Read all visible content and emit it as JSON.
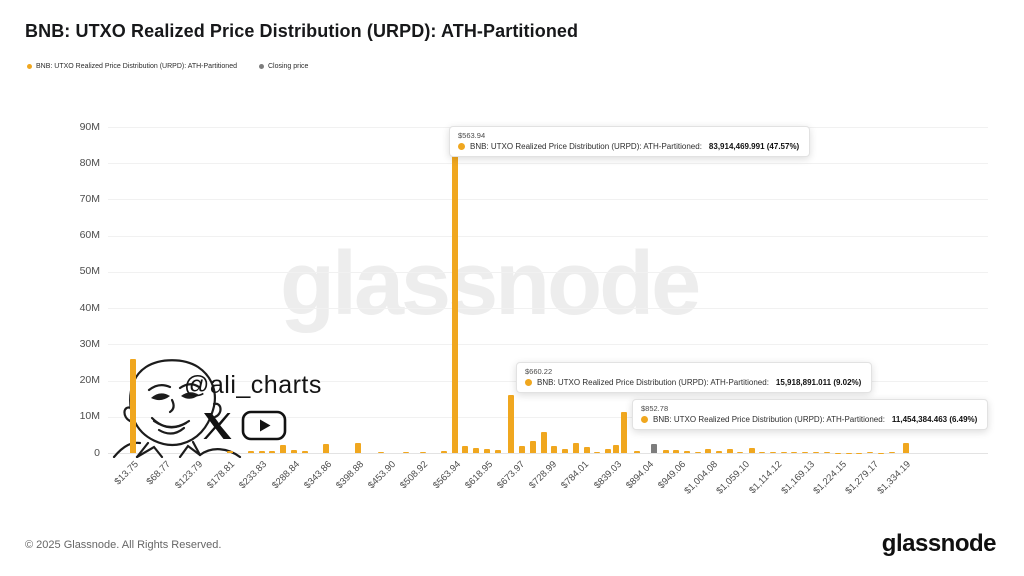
{
  "header": {
    "title": "BNB: UTXO Realized Price Distribution (URPD): ATH-Partitioned"
  },
  "legend": {
    "items": [
      {
        "label": "BNB: UTXO Realized Price Distribution (URPD): ATH-Partitioned",
        "color": "#F0A71F"
      },
      {
        "label": "Closing price",
        "color": "#7d7d7d"
      }
    ]
  },
  "chart_data": {
    "type": "bar",
    "title": "BNB: UTXO Realized Price Distribution (URPD): ATH-Partitioned",
    "xlabel": "",
    "ylabel": "",
    "ylim": [
      0,
      90000000
    ],
    "grid": "horizontal",
    "legend_position": "top-left",
    "y_tick_labels": [
      "0",
      "10M",
      "20M",
      "30M",
      "40M",
      "50M",
      "60M",
      "70M",
      "80M",
      "90M"
    ],
    "x_tick_labels": [
      "$13.75",
      "$68.77",
      "$123.79",
      "$178.81",
      "$233.83",
      "$288.84",
      "$343.86",
      "$398.88",
      "$453.90",
      "$508.92",
      "$563.94",
      "$618.95",
      "$673.97",
      "$728.99",
      "$784.01",
      "$839.03",
      "$894.04",
      "$949.06",
      "$1,004.08",
      "$1,059.10",
      "$1,114.12",
      "$1,169.13",
      "$1,224.15",
      "$1,279.17",
      "$1,334.19"
    ],
    "x_tick_step_usd": 55.02,
    "series": [
      {
        "name": "BNB: UTXO Realized Price Distribution (URPD): ATH-Partitioned",
        "color": "#F0A71F",
        "points": [
          {
            "price_usd": 13.75,
            "supply_m": 26.0
          },
          {
            "price_usd": 180,
            "supply_m": 0.5
          },
          {
            "price_usd": 216,
            "supply_m": 0.6
          },
          {
            "price_usd": 234,
            "supply_m": 0.7
          },
          {
            "price_usd": 252,
            "supply_m": 0.6
          },
          {
            "price_usd": 270,
            "supply_m": 2.2
          },
          {
            "price_usd": 289,
            "supply_m": 0.8
          },
          {
            "price_usd": 307,
            "supply_m": 0.5
          },
          {
            "price_usd": 344,
            "supply_m": 2.4
          },
          {
            "price_usd": 399,
            "supply_m": 2.9
          },
          {
            "price_usd": 437,
            "supply_m": 0.3
          },
          {
            "price_usd": 480,
            "supply_m": 0.3
          },
          {
            "price_usd": 510,
            "supply_m": 0.4
          },
          {
            "price_usd": 546,
            "supply_m": 0.5
          },
          {
            "price_usd": 563.94,
            "supply_m": 83.914
          },
          {
            "price_usd": 582,
            "supply_m": 2.0
          },
          {
            "price_usd": 600,
            "supply_m": 1.5
          },
          {
            "price_usd": 619,
            "supply_m": 1.1
          },
          {
            "price_usd": 637,
            "supply_m": 0.8
          },
          {
            "price_usd": 660.22,
            "supply_m": 15.919
          },
          {
            "price_usd": 679,
            "supply_m": 2.0
          },
          {
            "price_usd": 697,
            "supply_m": 3.4
          },
          {
            "price_usd": 716,
            "supply_m": 5.8
          },
          {
            "price_usd": 734,
            "supply_m": 2.0
          },
          {
            "price_usd": 752,
            "supply_m": 1.2
          },
          {
            "price_usd": 771,
            "supply_m": 2.8
          },
          {
            "price_usd": 789,
            "supply_m": 1.8
          },
          {
            "price_usd": 807,
            "supply_m": 0.4
          },
          {
            "price_usd": 826,
            "supply_m": 1.0
          },
          {
            "price_usd": 839,
            "supply_m": 2.2
          },
          {
            "price_usd": 852.78,
            "supply_m": 11.454
          },
          {
            "price_usd": 875,
            "supply_m": 0.6
          },
          {
            "price_usd": 924,
            "supply_m": 0.8
          },
          {
            "price_usd": 942,
            "supply_m": 0.8
          },
          {
            "price_usd": 960,
            "supply_m": 0.7
          },
          {
            "price_usd": 979,
            "supply_m": 0.3
          },
          {
            "price_usd": 997,
            "supply_m": 1.0
          },
          {
            "price_usd": 1015,
            "supply_m": 0.7
          },
          {
            "price_usd": 1034,
            "supply_m": 1.0
          },
          {
            "price_usd": 1052,
            "supply_m": 0.3
          },
          {
            "price_usd": 1071,
            "supply_m": 1.3
          },
          {
            "price_usd": 1089,
            "supply_m": 0.4
          },
          {
            "price_usd": 1107,
            "supply_m": 0.3
          },
          {
            "price_usd": 1126,
            "supply_m": 0.2
          },
          {
            "price_usd": 1144,
            "supply_m": 0.2
          },
          {
            "price_usd": 1163,
            "supply_m": 0.2
          },
          {
            "price_usd": 1181,
            "supply_m": 0.2
          },
          {
            "price_usd": 1200,
            "supply_m": 0.2
          },
          {
            "price_usd": 1218,
            "supply_m": 0.15
          },
          {
            "price_usd": 1237,
            "supply_m": 0.15
          },
          {
            "price_usd": 1255,
            "supply_m": 0.15
          },
          {
            "price_usd": 1274,
            "supply_m": 0.2
          },
          {
            "price_usd": 1292,
            "supply_m": 0.15
          },
          {
            "price_usd": 1311,
            "supply_m": 0.2
          },
          {
            "price_usd": 1334.19,
            "supply_m": 2.9
          }
        ]
      },
      {
        "name": "Closing price",
        "color": "#7d7d7d",
        "points": [
          {
            "price_usd": 905,
            "supply_m": 2.5
          }
        ]
      }
    ],
    "callouts": [
      {
        "price_label": "$563.94",
        "metric_label": "BNB: UTXO Realized Price Distribution (URPD): ATH-Partitioned:",
        "value_bold": "83,914,469.991 (47.57%)",
        "dot_color": "#F0A71F"
      },
      {
        "price_label": "$660.22",
        "metric_label": "BNB: UTXO Realized Price Distribution (URPD): ATH-Partitioned:",
        "value_bold": "15,918,891.011 (9.02%)",
        "dot_color": "#F0A71F"
      },
      {
        "price_label": "$852.78",
        "metric_label": "BNB: UTXO Realized Price Distribution (URPD): ATH-Partitioned:",
        "value_bold": "11,454,384.463 (6.49%)",
        "dot_color": "#F0A71F"
      }
    ]
  },
  "watermark": {
    "brand_text": "glassnode",
    "handle": "@ali_charts"
  },
  "footer": {
    "copyright": "© 2025 Glassnode. All Rights Reserved.",
    "brand_logo_text": "glassnode"
  }
}
